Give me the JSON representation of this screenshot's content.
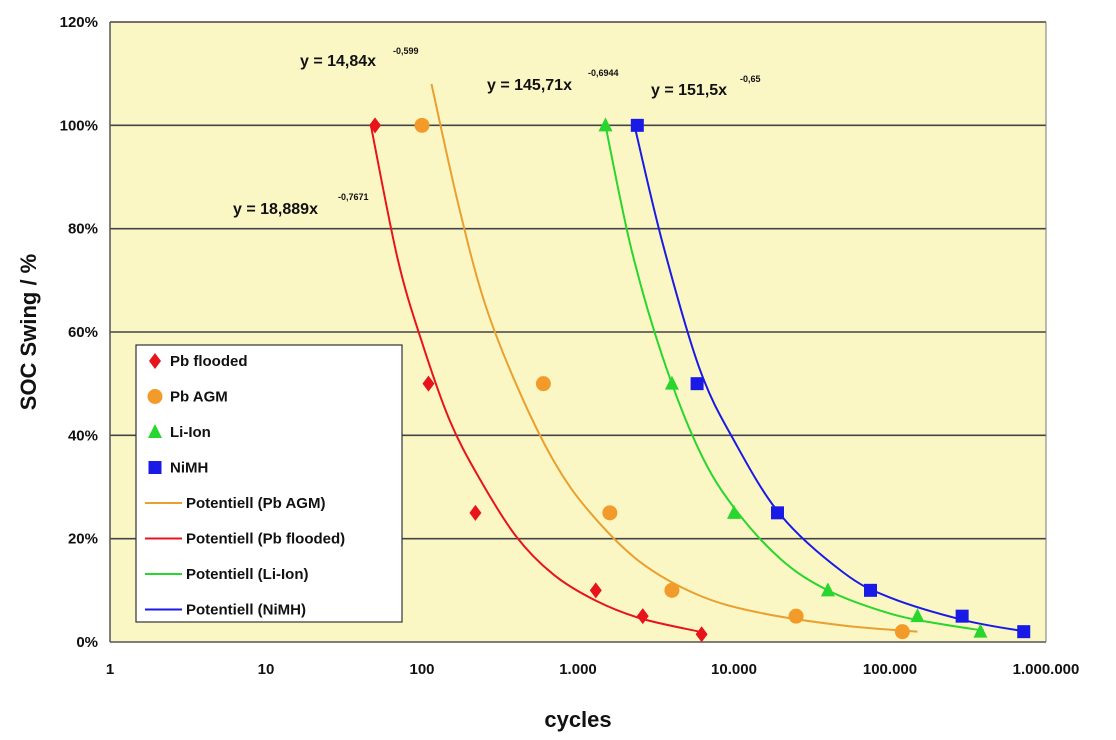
{
  "chart_data": {
    "type": "scatter",
    "xlabel": "cycles",
    "ylabel": "SOC Swing / %",
    "x_scale": "log",
    "xlim": [
      1,
      1000000
    ],
    "ylim": [
      0,
      120
    ],
    "grid": "horizontal",
    "legend_position": "left",
    "plot_background": "#fbf7c4",
    "x_ticks": [
      {
        "value": 1,
        "label": "1"
      },
      {
        "value": 10,
        "label": "10"
      },
      {
        "value": 100,
        "label": "100"
      },
      {
        "value": 1000,
        "label": "1.000"
      },
      {
        "value": 10000,
        "label": "10.000"
      },
      {
        "value": 100000,
        "label": "100.000"
      },
      {
        "value": 1000000,
        "label": "1.000.000"
      }
    ],
    "y_ticks": [
      {
        "value": 0,
        "label": "0%"
      },
      {
        "value": 20,
        "label": "20%"
      },
      {
        "value": 40,
        "label": "40%"
      },
      {
        "value": 60,
        "label": "60%"
      },
      {
        "value": 80,
        "label": "80%"
      },
      {
        "value": 100,
        "label": "100%"
      },
      {
        "value": 120,
        "label": "120%"
      }
    ],
    "series": [
      {
        "name": "Pb flooded",
        "kind": "points",
        "marker": "diamond",
        "color": "#e8141c",
        "x": [
          50,
          110,
          220,
          1300,
          2600,
          6200
        ],
        "y": [
          100,
          50,
          25,
          10,
          5,
          1.5
        ]
      },
      {
        "name": "Pb AGM",
        "kind": "points",
        "marker": "circle",
        "color": "#f29b2a",
        "x": [
          100,
          600,
          1600,
          4000,
          25000,
          120000
        ],
        "y": [
          100,
          50,
          25,
          10,
          5,
          2
        ]
      },
      {
        "name": "Li-Ion",
        "kind": "points",
        "marker": "triangle",
        "color": "#29d62e",
        "x": [
          1500,
          4000,
          10000,
          40000,
          150000,
          380000
        ],
        "y": [
          100,
          50,
          25,
          10,
          5,
          2
        ]
      },
      {
        "name": "NiMH",
        "kind": "points",
        "marker": "square",
        "color": "#1a1ae6",
        "x": [
          2400,
          5800,
          19000,
          75000,
          290000,
          720000
        ],
        "y": [
          100,
          50,
          25,
          10,
          5,
          2
        ]
      },
      {
        "name": "Potentiell (Pb AGM)",
        "kind": "trend",
        "color": "#e9a030",
        "x": [
          115,
          170,
          250,
          400,
          700,
          1200,
          2500,
          6000,
          15000,
          50000,
          150000
        ],
        "y": [
          108,
          85,
          66,
          50,
          35,
          25,
          15.5,
          9,
          5.6,
          3.2,
          2
        ]
      },
      {
        "name": "Potentiell (Pb flooded)",
        "kind": "trend",
        "color": "#e8141c",
        "x": [
          47,
          70,
          100,
          150,
          230,
          400,
          700,
          1300,
          2500,
          6000
        ],
        "y": [
          100,
          74,
          58,
          43,
          32,
          20.5,
          13,
          8,
          4.6,
          2
        ]
      },
      {
        "name": "Potentiell (Li-Ion)",
        "kind": "trend",
        "color": "#29d62e",
        "x": [
          1500,
          2200,
          3500,
          6000,
          10000,
          20000,
          40000,
          100000,
          200000,
          400000
        ],
        "y": [
          100,
          76,
          55,
          37,
          26,
          16,
          10,
          5.5,
          3.6,
          2.2
        ]
      },
      {
        "name": "Potentiell (NiMH)",
        "kind": "trend",
        "color": "#1a1ae6",
        "x": [
          2300,
          3500,
          6000,
          10000,
          20000,
          50000,
          100000,
          300000,
          750000
        ],
        "y": [
          100,
          77,
          53,
          39,
          24.5,
          13.5,
          8.6,
          4.2,
          2
        ]
      }
    ],
    "annotations": [
      {
        "id": "eq1",
        "base": "y = 14,84x",
        "exponent": "-0,599"
      },
      {
        "id": "eq2",
        "base": "y = 145,71x",
        "exponent": "-0,6944"
      },
      {
        "id": "eq3",
        "base": "y = 151,5x",
        "exponent": "-0,65"
      },
      {
        "id": "eq4",
        "base": "y = 18,889x",
        "exponent": "-0,7671"
      }
    ]
  }
}
